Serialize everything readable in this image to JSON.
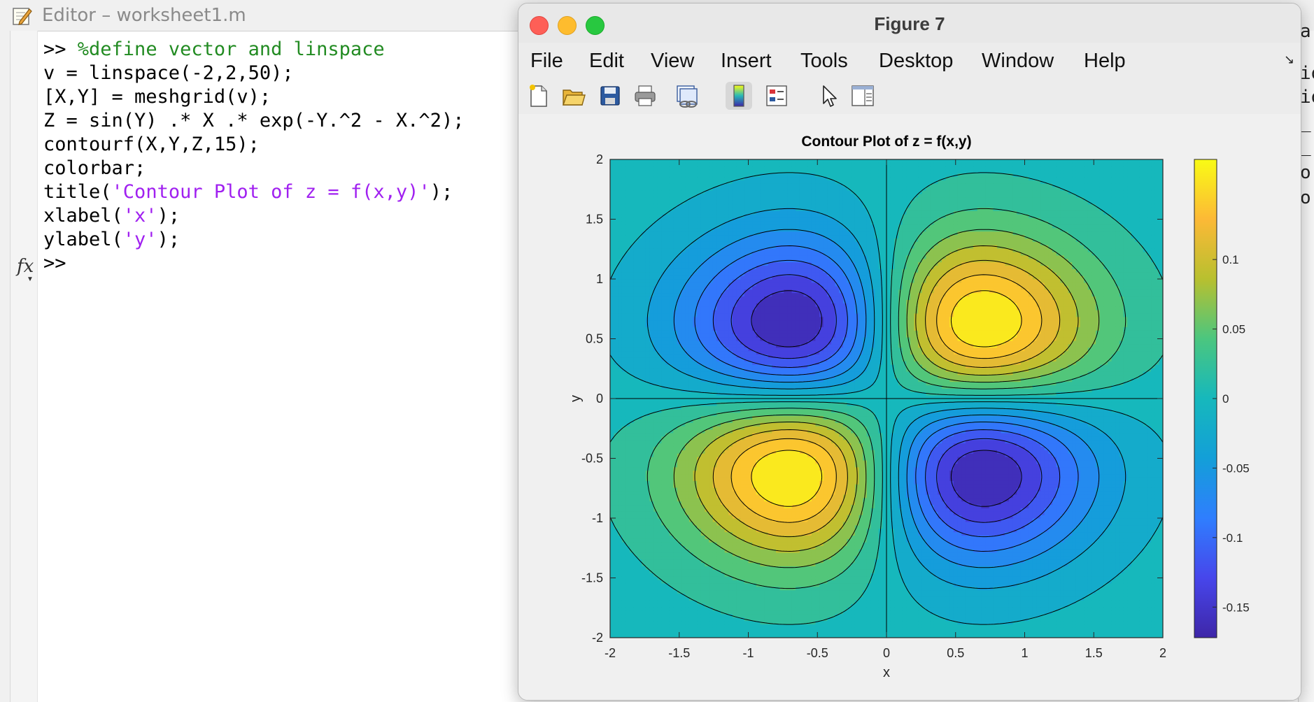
{
  "editor": {
    "title": "Editor – worksheet1.m",
    "fx_label": "fx",
    "right_fragments": [
      "a",
      "io",
      "io",
      "_",
      "_",
      "o",
      "o"
    ]
  },
  "command_window": {
    "lines": [
      [
        {
          "t": ">> ",
          "c": ""
        },
        {
          "t": "%define vector and linspace",
          "c": "cm"
        }
      ],
      [
        {
          "t": "v = linspace(-2,2,50);",
          "c": ""
        }
      ],
      [
        {
          "t": "[X,Y] = meshgrid(v);",
          "c": ""
        }
      ],
      [
        {
          "t": "Z = sin(Y) .* X .* exp(-Y.^2 - X.^2);",
          "c": ""
        }
      ],
      [
        {
          "t": "contourf(X,Y,Z,15);",
          "c": ""
        }
      ],
      [
        {
          "t": "colorbar;",
          "c": ""
        }
      ],
      [
        {
          "t": "title(",
          "c": ""
        },
        {
          "t": "'Contour Plot of z = f(x,y)'",
          "c": "st"
        },
        {
          "t": ");",
          "c": ""
        }
      ],
      [
        {
          "t": "xlabel(",
          "c": ""
        },
        {
          "t": "'x'",
          "c": "st"
        },
        {
          "t": ");",
          "c": ""
        }
      ],
      [
        {
          "t": "ylabel(",
          "c": ""
        },
        {
          "t": "'y'",
          "c": "st"
        },
        {
          "t": ");",
          "c": ""
        }
      ],
      [
        {
          "t": ">>",
          "c": ""
        }
      ]
    ]
  },
  "figure_window": {
    "title": "Figure 7",
    "menu": [
      "File",
      "Edit",
      "View",
      "Insert",
      "Tools",
      "Desktop",
      "Window",
      "Help"
    ],
    "toolbar_icons": [
      "new-figure-icon",
      "open-file-icon",
      "save-icon",
      "print-icon",
      "link-plot-icon",
      "colorbar-icon",
      "legend-icon",
      "pointer-icon",
      "property-editor-icon"
    ]
  },
  "colors": {
    "code_comment": "#228b22",
    "code_string": "#a020f0",
    "traffic_close": "#fe5f57",
    "traffic_min": "#febc2e",
    "traffic_max": "#28c840"
  },
  "chart_data": {
    "type": "contour",
    "title": "Contour Plot of z = f(x,y)",
    "xlabel": "x",
    "ylabel": "y",
    "xlim": [
      -2,
      2
    ],
    "ylim": [
      -2,
      2
    ],
    "xticks": [
      "-2",
      "-1.5",
      "-1",
      "-0.5",
      "0",
      "0.5",
      "1",
      "1.5",
      "2"
    ],
    "yticks": [
      "2",
      "1.5",
      "1",
      "0.5",
      "0",
      "-0.5",
      "-1",
      "-1.5",
      "-2"
    ],
    "colorbar_ticks": [
      "0.1",
      "0.05",
      "0",
      "-0.05",
      "-0.1",
      "-0.15"
    ],
    "colorbar_range": [
      -0.172,
      0.172
    ],
    "colormap": "parula",
    "levels": 15,
    "extrema": [
      {
        "x": -0.707,
        "y": 0.653,
        "z": -0.172
      },
      {
        "x": 0.707,
        "y": 0.653,
        "z": 0.172
      },
      {
        "x": -0.707,
        "y": -0.653,
        "z": 0.172
      },
      {
        "x": 0.707,
        "y": -0.653,
        "z": -0.172
      }
    ]
  }
}
